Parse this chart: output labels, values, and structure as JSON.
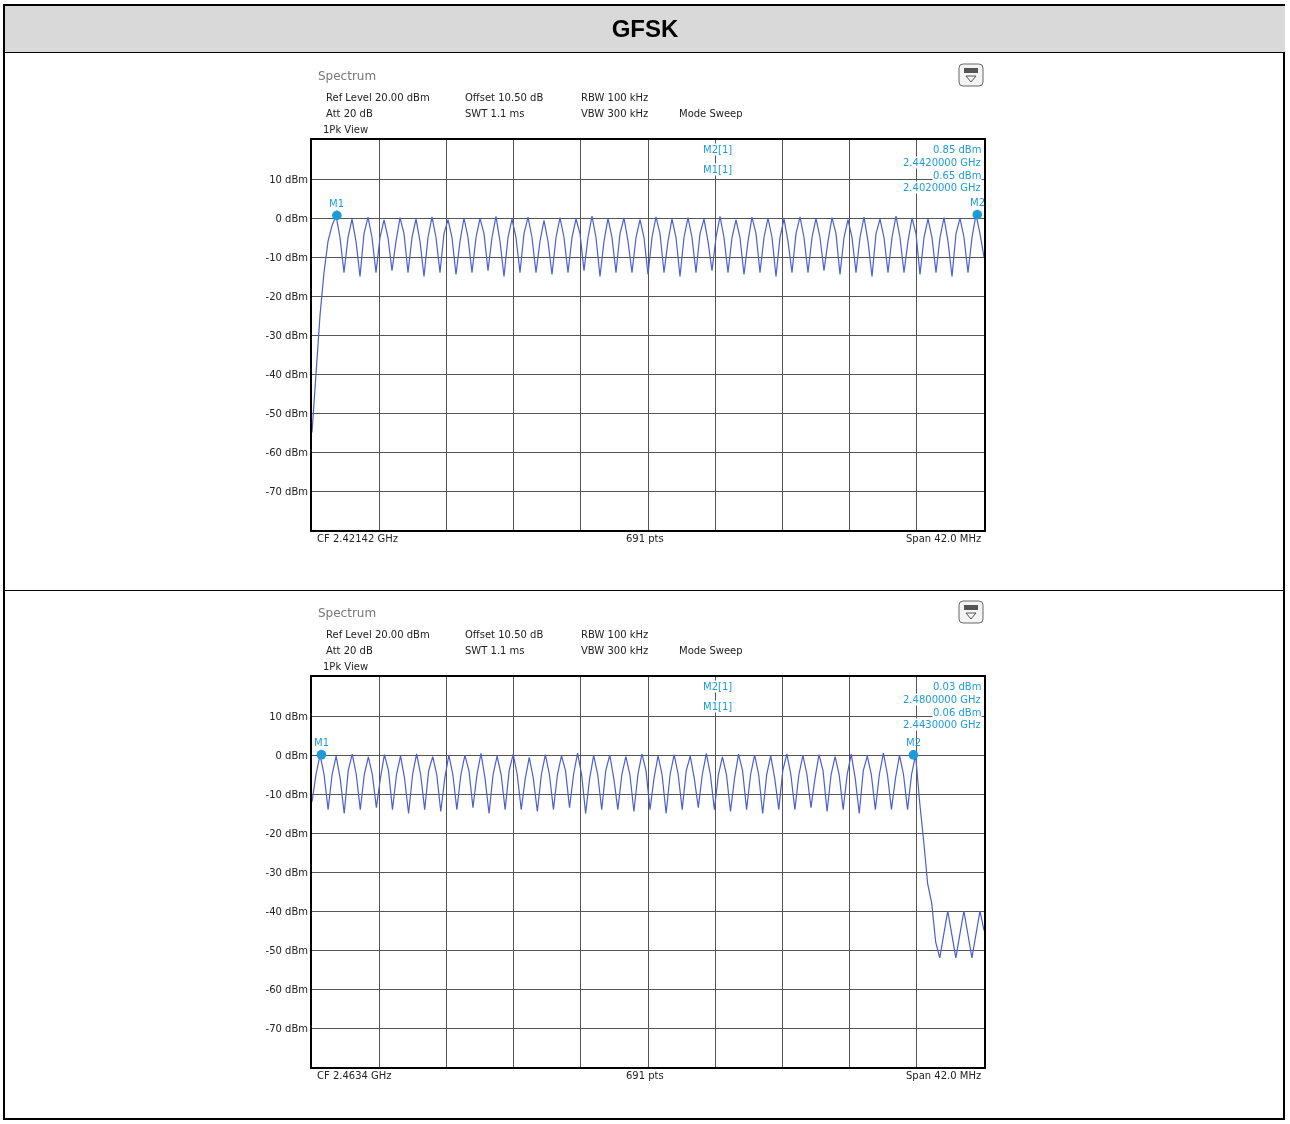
{
  "chart_data": [
    {
      "type": "line",
      "title": "GFSK",
      "annotations": [
        "Spectrum",
        "Ref Level 20.00 dBm",
        "Offset 10.50 dB",
        "RBW 100 kHz",
        "Att 20 dB",
        "SWT 1.1 ms",
        "VBW 300 kHz",
        "Mode Sweep",
        "1Pk View",
        "M2[1]",
        "0.85 dBm",
        "2.4420000 GHz",
        "M1[1]",
        "0.65 dBm",
        "2.4020000 GHz",
        "CF 2.42142 GHz",
        "691 pts",
        "Span 42.0 MHz",
        "M1",
        "M2"
      ],
      "categories": [
        null,
        null,
        null,
        null,
        null,
        null,
        null,
        null,
        null,
        null,
        null,
        null,
        null,
        null,
        null,
        null,
        null,
        null,
        null,
        null,
        null,
        null,
        null,
        null,
        null,
        null,
        null,
        null,
        null,
        null,
        null,
        null,
        null,
        null,
        null,
        null,
        null,
        null,
        null,
        null,
        null,
        null,
        null,
        null,
        null,
        null,
        null,
        null,
        null,
        null,
        null,
        null,
        null,
        null,
        null,
        null,
        null,
        null,
        null,
        null,
        null,
        null,
        null,
        null,
        null,
        null,
        null,
        null,
        null,
        null,
        null,
        null,
        null,
        null,
        null,
        null,
        null,
        null,
        null,
        null,
        null,
        null,
        null,
        null,
        null,
        null,
        null,
        null,
        null,
        null,
        null,
        null,
        null,
        null,
        null,
        null,
        null,
        null,
        null,
        null,
        null,
        null,
        null,
        null,
        null,
        null,
        null,
        null,
        null,
        null,
        null,
        null,
        null,
        null,
        null,
        null,
        null,
        null,
        null,
        null,
        null,
        null,
        null,
        null,
        null,
        null,
        null,
        null,
        null,
        null,
        null,
        null,
        null,
        null,
        null,
        null,
        null,
        null,
        null,
        null,
        null,
        null,
        null,
        null,
        null,
        null,
        null,
        null,
        null,
        null,
        null,
        null,
        null,
        null,
        null,
        null,
        null,
        null,
        null,
        null,
        null,
        null,
        null,
        null,
        null,
        null,
        null,
        null,
        null
      ],
      "ylim": [
        -80,
        20
      ],
      "yticks": [
        {
          "value": 20,
          "label": null
        },
        {
          "value": 10,
          "label": "10 dBm"
        },
        {
          "value": 0,
          "label": "0 dBm"
        },
        {
          "value": -10,
          "label": "-10 dBm"
        },
        {
          "value": -20,
          "label": "-20 dBm"
        },
        {
          "value": -30,
          "label": "-30 dBm"
        },
        {
          "value": -40,
          "label": "-40 dBm"
        },
        {
          "value": -50,
          "label": "-50 dBm"
        },
        {
          "value": -60,
          "label": "-60 dBm"
        },
        {
          "value": -70,
          "label": "-70 dBm"
        },
        {
          "value": -80,
          "label": null
        }
      ],
      "grid": true,
      "tick_labels": "y",
      "series": [
        {
          "color": "#4a5fd0",
          "values": [
            -55,
            -40,
            -25,
            -14,
            -6,
            -2,
            0.65,
            -5,
            -14,
            -5,
            -0.3,
            -6,
            -15,
            -4,
            0.2,
            -5,
            -14,
            -5,
            -0.5,
            -5,
            -13.5,
            -6,
            0.1,
            -4,
            -14,
            -5,
            -0.2,
            -6,
            -15,
            -5,
            0.3,
            -5,
            -14,
            -4,
            -0.4,
            -5,
            -14.5,
            -6,
            0.0,
            -5,
            -14,
            -5,
            -0.1,
            -4,
            -13.5,
            -5,
            0.4,
            -6,
            -15,
            -5,
            -0.3,
            -5,
            -14,
            -4,
            0.2,
            -5,
            -14,
            -6,
            -0.6,
            -6,
            -14.5,
            -5,
            0.1,
            -5,
            -14,
            -5,
            -0.2,
            -4,
            -13.5,
            -5,
            0.5,
            -5,
            -15,
            -6,
            -0.1,
            -5,
            -14,
            -4,
            0.0,
            -6,
            -14,
            -5,
            -0.4,
            -5,
            -14.5,
            -5,
            0.3,
            -4,
            -14,
            -6,
            -0.2,
            -5,
            -15,
            -5,
            0.1,
            -5,
            -14,
            -4,
            -0.3,
            -6,
            -13.5,
            -5,
            0.4,
            -5,
            -14,
            -5,
            -0.5,
            -5,
            -14.5,
            -6,
            0.2,
            -4,
            -14,
            -5,
            0.0,
            -5,
            -15,
            -5,
            -0.2,
            -6,
            -14,
            -4,
            0.3,
            -5,
            -14,
            -5,
            -0.1,
            -5,
            -13.5,
            -6,
            0.1,
            -4,
            -14.5,
            -5,
            -0.4,
            -5,
            -14,
            -5,
            0.2,
            -6,
            -15,
            -4,
            -0.3,
            -5,
            -14,
            -5,
            0.5,
            -5,
            -14,
            -6,
            0.0,
            -4,
            -14.5,
            -5,
            -0.2,
            -5,
            -14,
            -5,
            0.1,
            -6,
            -15,
            -4,
            -0.1,
            -5,
            -14,
            -5,
            0.85,
            -4,
            -10
          ]
        }
      ]
    },
    {
      "type": "line",
      "annotations": [
        "Spectrum",
        "Ref Level 20.00 dBm",
        "Offset 10.50 dB",
        "RBW 100 kHz",
        "Att 20 dB",
        "SWT 1.1 ms",
        "VBW 300 kHz",
        "Mode Sweep",
        "1Pk View",
        "M2[1]",
        "0.03 dBm",
        "2.4800000 GHz",
        "M1[1]",
        "0.06 dBm",
        "2.4430000 GHz",
        "CF 2.4634 GHz",
        "691 pts",
        "Span 42.0 MHz",
        "M1",
        "M2"
      ],
      "categories": [
        null,
        null,
        null,
        null,
        null,
        null,
        null,
        null,
        null,
        null,
        null,
        null,
        null,
        null,
        null,
        null,
        null,
        null,
        null,
        null,
        null,
        null,
        null,
        null,
        null,
        null,
        null,
        null,
        null,
        null,
        null,
        null,
        null,
        null,
        null,
        null,
        null,
        null,
        null,
        null,
        null,
        null,
        null,
        null,
        null,
        null,
        null,
        null,
        null,
        null,
        null,
        null,
        null,
        null,
        null,
        null,
        null,
        null,
        null,
        null,
        null,
        null,
        null,
        null,
        null,
        null,
        null,
        null,
        null,
        null,
        null,
        null,
        null,
        null,
        null,
        null,
        null,
        null,
        null,
        null,
        null,
        null,
        null,
        null,
        null,
        null,
        null,
        null,
        null,
        null,
        null,
        null,
        null,
        null,
        null,
        null,
        null,
        null,
        null,
        null,
        null,
        null,
        null,
        null,
        null,
        null,
        null,
        null,
        null,
        null,
        null,
        null,
        null,
        null,
        null,
        null,
        null,
        null,
        null,
        null,
        null,
        null,
        null,
        null,
        null,
        null,
        null,
        null,
        null,
        null,
        null,
        null,
        null,
        null,
        null,
        null,
        null,
        null,
        null,
        null,
        null,
        null,
        null,
        null,
        null,
        null,
        null,
        null,
        null,
        null,
        null,
        null,
        null,
        null,
        null,
        null,
        null,
        null,
        null,
        null,
        null,
        null,
        null,
        null,
        null,
        null,
        null,
        null
      ],
      "ylim": [
        -80,
        20
      ],
      "yticks": [
        {
          "value": 20,
          "label": null
        },
        {
          "value": 10,
          "label": "10 dBm"
        },
        {
          "value": 0,
          "label": "0 dBm"
        },
        {
          "value": -10,
          "label": "-10 dBm"
        },
        {
          "value": -20,
          "label": "-20 dBm"
        },
        {
          "value": -30,
          "label": "-30 dBm"
        },
        {
          "value": -40,
          "label": "-40 dBm"
        },
        {
          "value": -50,
          "label": "-50 dBm"
        },
        {
          "value": -60,
          "label": "-60 dBm"
        },
        {
          "value": -70,
          "label": "-70 dBm"
        },
        {
          "value": -80,
          "label": null
        }
      ],
      "grid": true,
      "tick_labels": "y",
      "series": [
        {
          "color": "#4a5fd0",
          "values": [
            -12,
            -5,
            0.06,
            -5,
            -14,
            -5,
            -0.3,
            -6,
            -15,
            -4,
            0.2,
            -5,
            -14,
            -5,
            -0.5,
            -5,
            -13.5,
            -6,
            0.1,
            -4,
            -14,
            -5,
            -0.2,
            -6,
            -15,
            -5,
            0.3,
            -5,
            -14,
            -4,
            -0.4,
            -5,
            -14.5,
            -6,
            0.0,
            -5,
            -14,
            -5,
            -0.1,
            -4,
            -13.5,
            -5,
            0.4,
            -6,
            -15,
            -5,
            -0.3,
            -5,
            -14,
            -4,
            0.2,
            -5,
            -14,
            -6,
            -0.6,
            -6,
            -14.5,
            -5,
            0.1,
            -5,
            -14,
            -5,
            -0.2,
            -4,
            -13.5,
            -5,
            0.5,
            -5,
            -15,
            -6,
            -0.1,
            -5,
            -14,
            -4,
            0.0,
            -6,
            -14,
            -5,
            -0.4,
            -5,
            -14.5,
            -5,
            0.3,
            -4,
            -14,
            -6,
            -0.2,
            -5,
            -15,
            -5,
            0.1,
            -5,
            -14,
            -4,
            -0.3,
            -6,
            -13.5,
            -5,
            0.4,
            -5,
            -14,
            -5,
            -0.5,
            -5,
            -14.5,
            -6,
            0.2,
            -4,
            -14,
            -5,
            0.0,
            -5,
            -15,
            -5,
            -0.2,
            -6,
            -14,
            -4,
            0.3,
            -5,
            -14,
            -5,
            -0.1,
            -5,
            -13.5,
            -6,
            0.1,
            -4,
            -14.5,
            -5,
            -0.4,
            -5,
            -14,
            -5,
            0.2,
            -6,
            -15,
            -4,
            -0.3,
            -5,
            -14,
            -5,
            0.5,
            -5,
            -14,
            -6,
            -0.1,
            -5,
            -14,
            -5,
            0.03,
            -12,
            -22,
            -33,
            -38,
            -48,
            -52,
            -46,
            -40,
            -46,
            -52,
            -46,
            -40,
            -46,
            -52,
            -46,
            -40,
            -45
          ]
        }
      ]
    }
  ]
}
